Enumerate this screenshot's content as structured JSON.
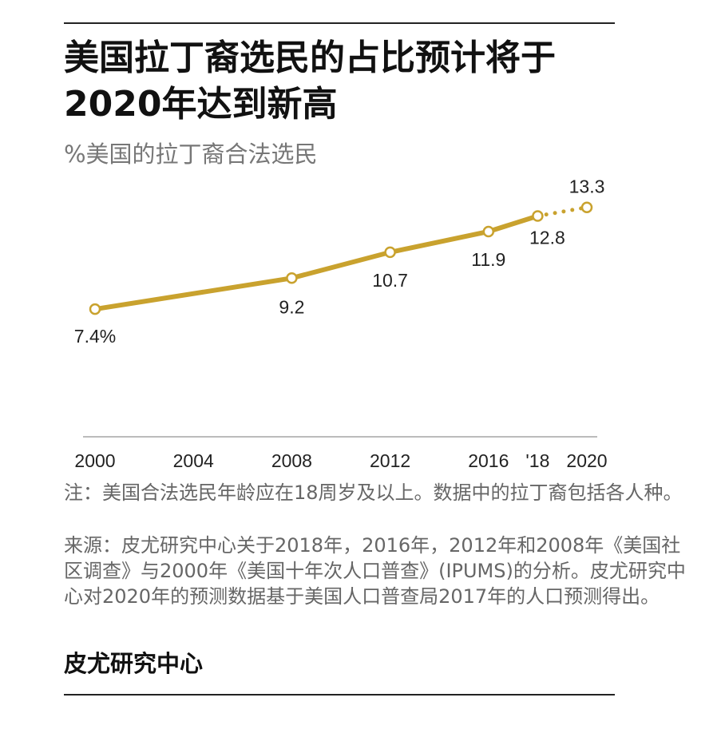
{
  "chart_data": {
    "type": "line",
    "title": [
      "美国拉丁裔选民的占比预计将于",
      "2020年达到新高"
    ],
    "subtitle": "%美国的拉丁裔合法选民",
    "x": [
      2000,
      2008,
      2012,
      2016,
      2018,
      2020
    ],
    "series": [
      {
        "name": "美国的拉丁裔合法选民",
        "color": "#c9a22e",
        "values": [
          7.4,
          9.2,
          10.7,
          11.9,
          12.8,
          13.3
        ],
        "value_labels": [
          "7.4%",
          "9.2",
          "10.7",
          "11.9",
          "12.8",
          "13.3"
        ],
        "projected": [
          false,
          false,
          false,
          false,
          false,
          true
        ]
      }
    ],
    "xlim": [
      2000,
      2020
    ],
    "xticks": [
      2000,
      2004,
      2008,
      2012,
      2016,
      {
        "value": 2018,
        "label": "'18"
      },
      2020
    ],
    "ylim": [
      0,
      15
    ],
    "grid": false,
    "note": "注：美国合法选民年龄应在18周岁及以上。数据中的拉丁裔包括各人种。",
    "source": "来源：皮尤研究中心关于2018年，2016年，2012年和2008年《美国社区调查》与2000年《美国十年次人口普查》(IPUMS)的分析。皮尤研究中心对2020年的预测数据基于美国人口普查局2017年的人口预测得出。",
    "footer": "皮尤研究中心"
  }
}
